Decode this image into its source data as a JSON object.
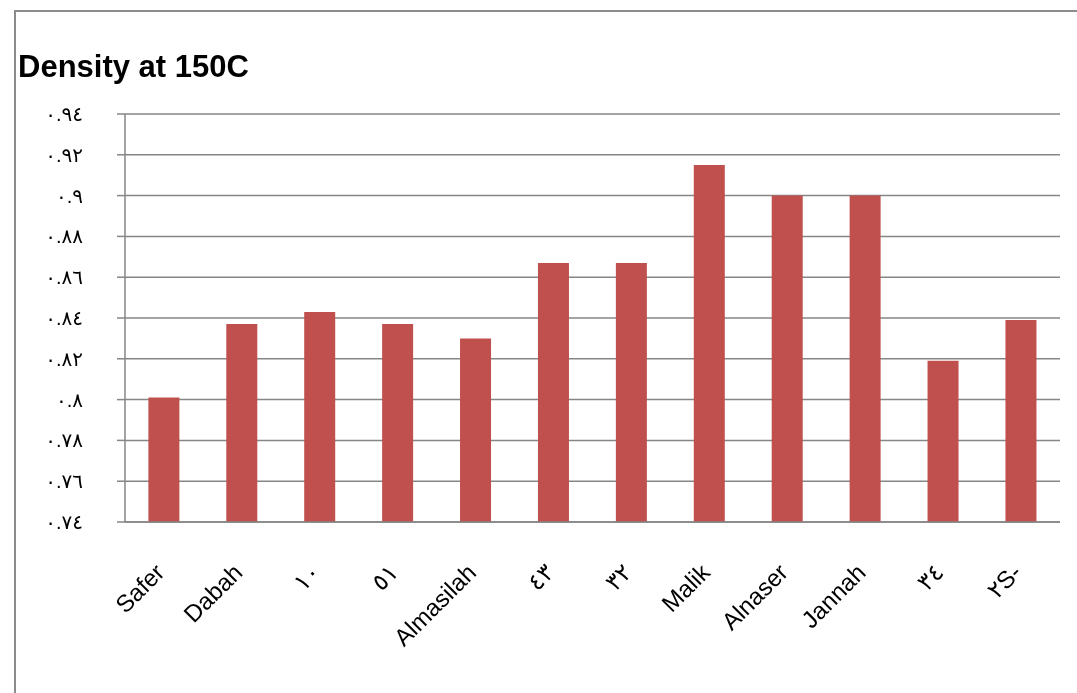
{
  "chart_data": {
    "type": "bar",
    "title": "Density at 150C",
    "categories": [
      "Safer",
      "Dabah",
      "١٠",
      "٥١",
      "Almasilah",
      "٤٣",
      "٣٢",
      "Malik",
      "Alnaser",
      "Jannah",
      "٣٤",
      "٢S-"
    ],
    "values": [
      0.801,
      0.837,
      0.843,
      0.837,
      0.83,
      0.867,
      0.867,
      0.915,
      0.9,
      0.9,
      0.819,
      0.839
    ],
    "color": "#c0504d",
    "ylim": [
      0.74,
      0.94
    ],
    "yticks": [
      {
        "value": 0.74,
        "label": "٠.٧٤"
      },
      {
        "value": 0.76,
        "label": "٠.٧٦"
      },
      {
        "value": 0.78,
        "label": "٠.٧٨"
      },
      {
        "value": 0.8,
        "label": "٠.٨"
      },
      {
        "value": 0.82,
        "label": "٠.٨٢"
      },
      {
        "value": 0.84,
        "label": "٠.٨٤"
      },
      {
        "value": 0.86,
        "label": "٠.٨٦"
      },
      {
        "value": 0.88,
        "label": "٠.٨٨"
      },
      {
        "value": 0.9,
        "label": "٠.٩"
      },
      {
        "value": 0.92,
        "label": "٠.٩٢"
      },
      {
        "value": 0.94,
        "label": "٠.٩٤"
      }
    ],
    "grid": "y"
  }
}
